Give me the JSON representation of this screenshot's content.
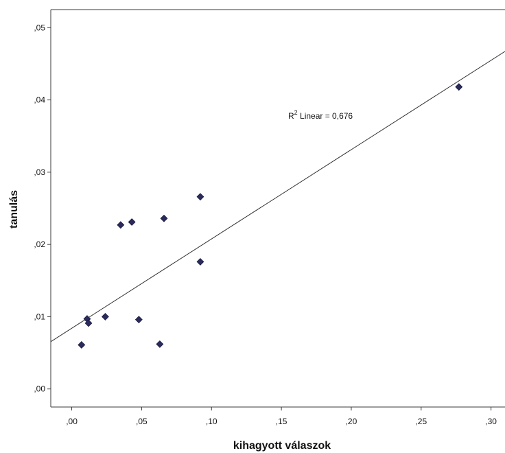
{
  "chart_data": {
    "type": "scatter",
    "title": "",
    "xlabel": "kihagyott válaszok",
    "ylabel": "tanulás",
    "xlim": [
      -0.015,
      0.31
    ],
    "ylim": [
      -0.0025,
      0.0525
    ],
    "x_ticks": [
      0.0,
      0.05,
      0.1,
      0.15,
      0.2,
      0.25,
      0.3
    ],
    "x_tick_labels": [
      ",00",
      ",05",
      ",10",
      ",15",
      ",20",
      ",25",
      ",30"
    ],
    "y_ticks": [
      0.0,
      0.01,
      0.02,
      0.03,
      0.04,
      0.05
    ],
    "y_tick_labels": [
      ",00",
      ",01",
      ",02",
      ",03",
      ",04",
      ",05"
    ],
    "grid": false,
    "points": [
      {
        "x": 0.007,
        "y": 0.0061
      },
      {
        "x": 0.011,
        "y": 0.0097
      },
      {
        "x": 0.012,
        "y": 0.0091
      },
      {
        "x": 0.024,
        "y": 0.01
      },
      {
        "x": 0.035,
        "y": 0.0227
      },
      {
        "x": 0.043,
        "y": 0.0231
      },
      {
        "x": 0.048,
        "y": 0.0096
      },
      {
        "x": 0.063,
        "y": 0.0062
      },
      {
        "x": 0.066,
        "y": 0.0236
      },
      {
        "x": 0.092,
        "y": 0.0266
      },
      {
        "x": 0.092,
        "y": 0.0176
      },
      {
        "x": 0.277,
        "y": 0.0418
      }
    ],
    "fit_line": {
      "type": "linear",
      "intercept": 0.0084,
      "slope": 0.1236
    },
    "annotation": {
      "prefix": "R",
      "superscript": "2",
      "text": " Linear = 0,676"
    }
  },
  "colors": {
    "point_fill": "#2a2a5c",
    "line": "#333333"
  }
}
